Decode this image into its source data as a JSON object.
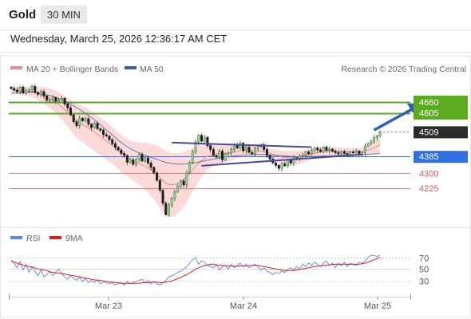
{
  "header": {
    "instrument": "Gold",
    "timeframe": "30 MIN"
  },
  "datetime": "Wednesday, March 25, 2026 12:36:17 AM CET",
  "copyright": "Research © 2026 Trading Central",
  "colors": {
    "resistance": "#5aab1e",
    "support": "#2f6fe0",
    "minor": "#e05a5a",
    "last": "#2b2b2b",
    "ma20": "#f08a8a",
    "bollinger": "#fbd3d3",
    "ma50": "#3b5aa8",
    "up": "#3d8a3d",
    "down": "#222222",
    "rsi": "#5b86e5",
    "rsi9ma": "#e02020",
    "arrow": "#2a60b8",
    "triangle": "#4a4a9a"
  },
  "chart_data": [
    {
      "type": "candlestick",
      "legend": [
        {
          "label": "MA 20 + Bollinger Bands",
          "color": "#f08a8a"
        },
        {
          "label": "MA 50",
          "color": "#3b5aa8"
        }
      ],
      "x_ticks": [
        "Mar 23",
        "Mar 24",
        "Mar 25"
      ],
      "ylim": [
        4040,
        4780
      ],
      "levels": [
        {
          "value": 4660,
          "label": "4660",
          "kind": "resistance"
        },
        {
          "value": 4605,
          "label": "4605",
          "kind": "resistance"
        },
        {
          "value": 4509,
          "label": "4509",
          "kind": "last"
        },
        {
          "value": 4385,
          "label": "4385",
          "kind": "support"
        },
        {
          "value": 4300,
          "label": "4300",
          "kind": "minor"
        },
        {
          "value": 4225,
          "label": "4225",
          "kind": "minor"
        }
      ],
      "closes": [
        4728,
        4720,
        4712,
        4735,
        4705,
        4716,
        4722,
        4738,
        4708,
        4698,
        4712,
        4690,
        4668,
        4670,
        4682,
        4664,
        4671,
        4678,
        4650,
        4630,
        4595,
        4560,
        4540,
        4578,
        4565,
        4575,
        4548,
        4530,
        4552,
        4525,
        4518,
        4495,
        4488,
        4470,
        4450,
        4432,
        4418,
        4400,
        4390,
        4356,
        4368,
        4345,
        4372,
        4395,
        4362,
        4378,
        4352,
        4330,
        4302,
        4265,
        4215,
        4150,
        4092,
        4140,
        4175,
        4208,
        4235,
        4262,
        4242,
        4302,
        4355,
        4410,
        4458,
        4492,
        4462,
        4482,
        4440,
        4420,
        4390,
        4382,
        4412,
        4368,
        4398,
        4402,
        4420,
        4446,
        4428,
        4452,
        4414,
        4432,
        4406,
        4398,
        4425,
        4435,
        4445,
        4420,
        4390,
        4372,
        4352,
        4340,
        4325,
        4348,
        4338,
        4366,
        4352,
        4378,
        4372,
        4388,
        4392,
        4408,
        4398,
        4415,
        4428,
        4418,
        4410,
        4432,
        4416,
        4422,
        4412,
        4404,
        4398,
        4410,
        4400,
        4396,
        4408,
        4405,
        4412,
        4398,
        4403,
        4438,
        4450,
        4462,
        4480,
        4488,
        4509
      ],
      "ma20": [
        4722,
        4720,
        4718,
        4718,
        4716,
        4714,
        4712,
        4712,
        4708,
        4703,
        4698,
        4692,
        4686,
        4678,
        4670,
        4660,
        4648,
        4636,
        4622,
        4608,
        4592,
        4578,
        4566,
        4556,
        4547,
        4538,
        4528,
        4518,
        4508,
        4497,
        4487,
        4476,
        4464,
        4452,
        4440,
        4427,
        4414,
        4401,
        4390,
        4380,
        4370,
        4362,
        4355,
        4349,
        4343,
        4336,
        4328,
        4318,
        4306,
        4292,
        4278,
        4262,
        4250,
        4244,
        4242,
        4244,
        4250,
        4258,
        4270,
        4284,
        4300,
        4318,
        4334,
        4350,
        4364,
        4376,
        4386,
        4392,
        4396,
        4398,
        4400,
        4400,
        4401,
        4403,
        4405,
        4408,
        4411,
        4414,
        4415,
        4416,
        4416,
        4415,
        4414,
        4413,
        4412,
        4410,
        4406,
        4401,
        4396,
        4391,
        4386,
        4382,
        4380,
        4379,
        4378,
        4378,
        4379,
        4381,
        4384,
        4388,
        4392,
        4396,
        4400,
        4404,
        4407,
        4410,
        4412,
        4413,
        4413,
        4412,
        4411,
        4410,
        4409,
        4408,
        4408,
        4408,
        4409,
        4410,
        4411,
        4414,
        4418,
        4423,
        4429,
        4436,
        4444
      ],
      "band_width": [
        18,
        18,
        18,
        19,
        20,
        22,
        24,
        26,
        30,
        34,
        38,
        42,
        46,
        50,
        54,
        58,
        62,
        66,
        70,
        74,
        78,
        82,
        86,
        88,
        90,
        92,
        94,
        95,
        96,
        96,
        96,
        96,
        96,
        95,
        94,
        93,
        92,
        92,
        92,
        93,
        95,
        98,
        102,
        106,
        112,
        118,
        124,
        130,
        138,
        146,
        154,
        160,
        164,
        164,
        162,
        158,
        152,
        146,
        138,
        130,
        120,
        110,
        100,
        92,
        84,
        76,
        70,
        64,
        58,
        54,
        50,
        46,
        44,
        42,
        40,
        38,
        36,
        34,
        32,
        30,
        28,
        27,
        26,
        25,
        24,
        24,
        24,
        25,
        26,
        28,
        30,
        32,
        33,
        34,
        34,
        34,
        33,
        32,
        31,
        30,
        29,
        28,
        27,
        26,
        25,
        24,
        23,
        22,
        21,
        20,
        20,
        19,
        19,
        18,
        18,
        18,
        18,
        18,
        19,
        21,
        24,
        28,
        32,
        36,
        40
      ],
      "ma50": [
        4702,
        4704,
        4706,
        4708,
        4709,
        4710,
        4710,
        4709,
        4708,
        4706,
        4704,
        4700,
        4696,
        4692,
        4688,
        4683,
        4677,
        4671,
        4664,
        4656,
        4648,
        4640,
        4631,
        4622,
        4612,
        4602,
        4592,
        4581,
        4569,
        4557,
        4545,
        4532,
        4519,
        4506,
        4493,
        4480,
        4467,
        4455,
        4444,
        4434,
        4425,
        4417,
        4410,
        4403,
        4397,
        4391,
        4386,
        4380,
        4375,
        4370,
        4365,
        4360,
        4356,
        4353,
        4350,
        4348,
        4347,
        4347,
        4347,
        4348,
        4350,
        4352,
        4354,
        4357,
        4360,
        4363,
        4366,
        4369,
        4372,
        4375,
        4378,
        4380,
        4382,
        4384,
        4386,
        4388,
        4390,
        4391,
        4392,
        4393,
        4394,
        4395,
        4395,
        4395,
        4395,
        4395,
        4394,
        4393,
        4392,
        4391,
        4390,
        4389,
        4388,
        4387,
        4386,
        4385,
        4384,
        4384,
        4384,
        4384,
        4384,
        4384,
        4385,
        4386,
        4387,
        4388,
        4388,
        4389,
        4389,
        4390,
        4390,
        4391,
        4391,
        4392,
        4392,
        4393,
        4393,
        4394,
        4394,
        4395,
        4396,
        4397,
        4398,
        4399,
        4400
      ],
      "trendlines": [
        {
          "from": [
            54,
            4455
          ],
          "to": [
            101,
            4432
          ]
        },
        {
          "from": [
            64,
            4338
          ],
          "to": [
            118,
            4395
          ]
        }
      ],
      "projection_arrow": {
        "from": [
          122,
          4518
        ],
        "to": [
          129,
          4655
        ]
      }
    },
    {
      "type": "line",
      "title": "RSI",
      "legend": [
        {
          "label": "RSI",
          "color": "#5b86e5"
        },
        {
          "label": "9MA",
          "color": "#e02020"
        }
      ],
      "ylim": [
        10,
        85
      ],
      "ticks": [
        "70",
        "50",
        "30"
      ],
      "rsi": [
        66,
        60,
        52,
        63,
        48,
        58,
        44,
        54,
        46,
        38,
        48,
        36,
        40,
        46,
        38,
        44,
        50,
        42,
        36,
        32,
        38,
        34,
        30,
        36,
        28,
        33,
        26,
        30,
        26,
        32,
        24,
        28,
        26,
        24,
        26,
        22,
        24,
        26,
        22,
        28,
        24,
        26,
        28,
        30,
        32,
        26,
        30,
        24,
        28,
        24,
        22,
        26,
        30,
        36,
        38,
        40,
        44,
        46,
        50,
        54,
        60,
        66,
        70,
        58,
        64,
        62,
        56,
        54,
        52,
        58,
        48,
        54,
        56,
        50,
        58,
        52,
        56,
        60,
        54,
        58,
        52,
        56,
        58,
        54,
        48,
        52,
        46,
        44,
        40,
        44,
        42,
        46,
        44,
        50,
        52,
        48,
        54,
        50,
        58,
        54,
        60,
        56,
        62,
        58,
        54,
        60,
        64,
        56,
        60,
        52,
        60,
        56,
        62,
        54,
        60,
        58,
        56,
        62,
        60,
        64,
        70,
        74,
        73,
        72,
        74
      ],
      "ma9": [
        63,
        62,
        60,
        58,
        57,
        55,
        54,
        53,
        52,
        50,
        49,
        48,
        47,
        45,
        44,
        43,
        43,
        42,
        41,
        40,
        39,
        38,
        37,
        36,
        35,
        34,
        33,
        32,
        31,
        30,
        30,
        29,
        28,
        27,
        27,
        26,
        26,
        25,
        25,
        25,
        25,
        25,
        25,
        25,
        26,
        26,
        26,
        27,
        27,
        27,
        26,
        26,
        27,
        28,
        29,
        31,
        33,
        35,
        38,
        40,
        43,
        46,
        50,
        52,
        54,
        56,
        57,
        58,
        58,
        57,
        57,
        56,
        56,
        55,
        55,
        55,
        55,
        55,
        55,
        55,
        56,
        56,
        56,
        56,
        55,
        54,
        53,
        52,
        51,
        50,
        49,
        48,
        47,
        47,
        47,
        47,
        48,
        49,
        50,
        51,
        52,
        53,
        54,
        55,
        55,
        56,
        57,
        57,
        58,
        58,
        58,
        58,
        58,
        58,
        58,
        58,
        58,
        58,
        59,
        60,
        62,
        64,
        66,
        68,
        70
      ]
    }
  ]
}
